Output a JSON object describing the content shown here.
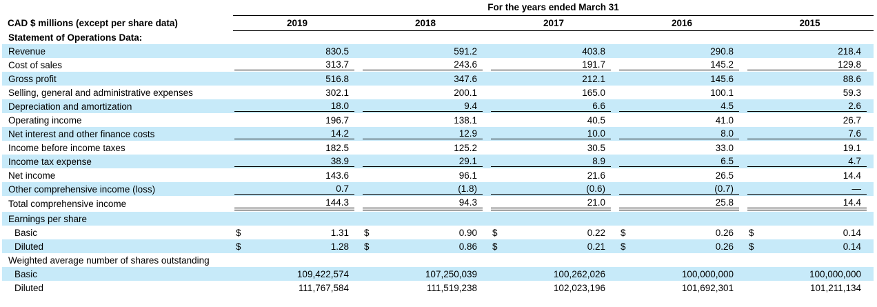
{
  "accent": {
    "row_highlight_color": "#c7eaf9",
    "rule_color": "#000000"
  },
  "table": {
    "group_header": "For the years ended March 31",
    "corner_label": "CAD $ millions (except per share data)",
    "years": [
      "2019",
      "2018",
      "2017",
      "2016",
      "2015"
    ],
    "currency_symbol": "$",
    "rows": [
      {
        "label": "Statement of Operations Data:",
        "bold": true,
        "indent": false,
        "highlight": false,
        "rule": null,
        "currency": false,
        "values": null
      },
      {
        "label": "Revenue",
        "bold": false,
        "indent": false,
        "highlight": true,
        "rule": null,
        "currency": false,
        "values": [
          "830.5",
          "591.2",
          "403.8",
          "290.8",
          "218.4"
        ]
      },
      {
        "label": "Cost of sales",
        "bold": false,
        "indent": false,
        "highlight": false,
        "rule": "single",
        "currency": false,
        "values": [
          "313.7",
          "243.6",
          "191.7",
          "145.2",
          "129.8"
        ]
      },
      {
        "label": "Gross profit",
        "bold": false,
        "indent": false,
        "highlight": true,
        "rule": null,
        "currency": false,
        "values": [
          "516.8",
          "347.6",
          "212.1",
          "145.6",
          "88.6"
        ]
      },
      {
        "label": "Selling, general and administrative expenses",
        "bold": false,
        "indent": false,
        "highlight": false,
        "rule": null,
        "currency": false,
        "values": [
          "302.1",
          "200.1",
          "165.0",
          "100.1",
          "59.3"
        ]
      },
      {
        "label": "Depreciation and amortization",
        "bold": false,
        "indent": false,
        "highlight": true,
        "rule": "single",
        "currency": false,
        "values": [
          "18.0",
          "9.4",
          "6.6",
          "4.5",
          "2.6"
        ]
      },
      {
        "label": "Operating income",
        "bold": false,
        "indent": false,
        "highlight": false,
        "rule": null,
        "currency": false,
        "values": [
          "196.7",
          "138.1",
          "40.5",
          "41.0",
          "26.7"
        ]
      },
      {
        "label": "Net interest and other finance costs",
        "bold": false,
        "indent": false,
        "highlight": true,
        "rule": "single",
        "currency": false,
        "values": [
          "14.2",
          "12.9",
          "10.0",
          "8.0",
          "7.6"
        ]
      },
      {
        "label": "Income before income taxes",
        "bold": false,
        "indent": false,
        "highlight": false,
        "rule": null,
        "currency": false,
        "values": [
          "182.5",
          "125.2",
          "30.5",
          "33.0",
          "19.1"
        ]
      },
      {
        "label": "Income tax expense",
        "bold": false,
        "indent": false,
        "highlight": true,
        "rule": "single",
        "currency": false,
        "values": [
          "38.9",
          "29.1",
          "8.9",
          "6.5",
          "4.7"
        ]
      },
      {
        "label": "Net income",
        "bold": false,
        "indent": false,
        "highlight": false,
        "rule": null,
        "currency": false,
        "values": [
          "143.6",
          "96.1",
          "21.6",
          "26.5",
          "14.4"
        ]
      },
      {
        "label": "Other comprehensive income (loss)",
        "bold": false,
        "indent": false,
        "highlight": true,
        "rule": "single",
        "currency": false,
        "values": [
          "0.7",
          "(1.8)",
          "(0.6)",
          "(0.7)",
          "—"
        ]
      },
      {
        "label": "Total comprehensive income",
        "bold": false,
        "indent": false,
        "highlight": false,
        "rule": "double",
        "currency": false,
        "values": [
          "144.3",
          "94.3",
          "21.0",
          "25.8",
          "14.4"
        ]
      },
      {
        "label": "Earnings per share",
        "bold": false,
        "indent": false,
        "highlight": true,
        "rule": null,
        "currency": false,
        "values": null
      },
      {
        "label": "Basic",
        "bold": false,
        "indent": true,
        "highlight": false,
        "rule": null,
        "currency": true,
        "values": [
          "1.31",
          "0.90",
          "0.22",
          "0.26",
          "0.14"
        ]
      },
      {
        "label": "Diluted",
        "bold": false,
        "indent": true,
        "highlight": true,
        "rule": null,
        "currency": true,
        "values": [
          "1.28",
          "0.86",
          "0.21",
          "0.26",
          "0.14"
        ]
      },
      {
        "label": "Weighted average number of shares outstanding",
        "bold": false,
        "indent": false,
        "highlight": false,
        "rule": null,
        "currency": false,
        "values": null
      },
      {
        "label": "Basic",
        "bold": false,
        "indent": true,
        "highlight": true,
        "rule": null,
        "currency": false,
        "values": [
          "109,422,574",
          "107,250,039",
          "100,262,026",
          "100,000,000",
          "100,000,000"
        ]
      },
      {
        "label": "Diluted",
        "bold": false,
        "indent": true,
        "highlight": false,
        "rule": null,
        "currency": false,
        "values": [
          "111,767,584",
          "111,519,238",
          "102,023,196",
          "101,692,301",
          "101,211,134"
        ]
      }
    ]
  }
}
